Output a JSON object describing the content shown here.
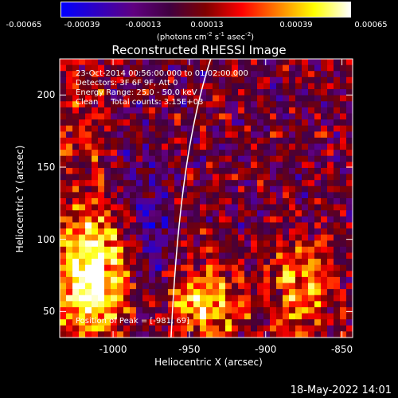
{
  "chart_data": {
    "type": "heatmap",
    "title": "Reconstructed RHESSI Image",
    "xlabel": "Heliocentric X (arcsec)",
    "ylabel": "Heliocentric Y (arcsec)",
    "xlim": [
      -1035,
      -843
    ],
    "ylim": [
      32,
      225
    ],
    "x_ticks": [
      "-1000",
      "-950",
      "-900",
      "-850"
    ],
    "x_tick_values": [
      -1000,
      -950,
      -900,
      -850
    ],
    "y_ticks": [
      "50",
      "100",
      "150",
      "200"
    ],
    "y_tick_values": [
      50,
      100,
      150,
      200
    ],
    "colorbar": {
      "ticks": [
        "-0.00065",
        "-0.00039",
        "-0.00013",
        "0.00013",
        "0.00039",
        "0.00065"
      ],
      "range": [
        -0.00065,
        0.00065
      ],
      "units_text": "(photons cm",
      "units_sup1": "-2",
      "units_mid1": " s",
      "units_sup2": "-1",
      "units_mid2": " asec",
      "units_sup3": "-2",
      "units_end": ")",
      "colors": [
        "#0000ff",
        "#3000c0",
        "#600080",
        "#400040",
        "#800000",
        "#ff0000",
        "#ff8000",
        "#ffff00",
        "#ffffff"
      ]
    },
    "annotations": {
      "time_range": "23-Oct-2014 00:56:00.000 to 01:02:00.000",
      "detectors": "Detectors: 3F 6F 9F, Att 0",
      "energy": "Energy Range: 25.0 - 50.0 keV",
      "clean": "Clean     Total counts: 3.15E+03",
      "peak": "Position of Peak = [-981, 69]"
    },
    "grid": false,
    "limb_line": true
  },
  "footer": {
    "timestamp": "18-May-2022 14:01"
  }
}
